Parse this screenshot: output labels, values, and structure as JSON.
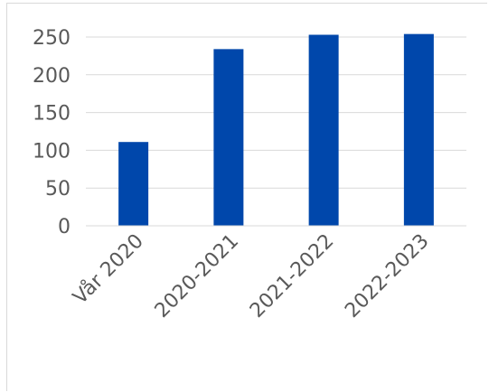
{
  "chart_data": {
    "type": "bar",
    "title": "",
    "xlabel": "",
    "ylabel": "",
    "categories": [
      "Vår 2020",
      "2020-2021",
      "2021-2022",
      "2022-2023"
    ],
    "values": [
      111,
      234,
      253,
      254
    ],
    "ylim": [
      0,
      250
    ],
    "yticks": [
      "0",
      "50",
      "100",
      "150",
      "200",
      "250"
    ],
    "grid": true,
    "legend": "none",
    "bar_color": "#0047ab",
    "grid_color": "#d9d9d9",
    "label_color": "#595959"
  }
}
